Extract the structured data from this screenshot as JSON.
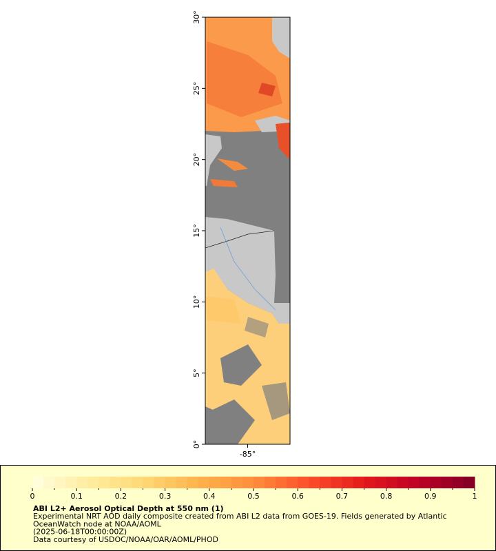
{
  "map": {
    "ylim": [
      0,
      30
    ],
    "yticks": [
      {
        "value": 0,
        "label": "0°"
      },
      {
        "value": 5,
        "label": "5°"
      },
      {
        "value": 10,
        "label": "10°"
      },
      {
        "value": 15,
        "label": "15°"
      },
      {
        "value": 20,
        "label": "20°"
      },
      {
        "value": 25,
        "label": "25°"
      },
      {
        "value": 30,
        "label": "30°"
      }
    ],
    "xlim": [
      -88,
      -82
    ],
    "xticks": [
      {
        "value": -85,
        "label": "-85°"
      }
    ]
  },
  "colorbar": {
    "range": [
      0,
      1
    ],
    "ticks": [
      0,
      0.1,
      0.2,
      0.3,
      0.4,
      0.5,
      0.6,
      0.7,
      0.8,
      0.9,
      1
    ],
    "colors": [
      "#ffffe0",
      "#ffeda0",
      "#fed976",
      "#feb24c",
      "#fd8d3c",
      "#fc4e2a",
      "#e31a1c",
      "#bd0026",
      "#800026"
    ]
  },
  "legend": {
    "title": "ABI L2+ Aerosol Optical Depth at 550 nm (1)",
    "lines": [
      "Experimental NRT AOD daily composite created from ABI L2 data from GOES-19. Fields generated by Atlantic",
      "OceanWatch node at NOAA/AOML",
      "(2025-06-18T00:00:00Z)",
      "Data courtesy of USDOC/NOAA/OAR/AOML/PHOD"
    ]
  }
}
